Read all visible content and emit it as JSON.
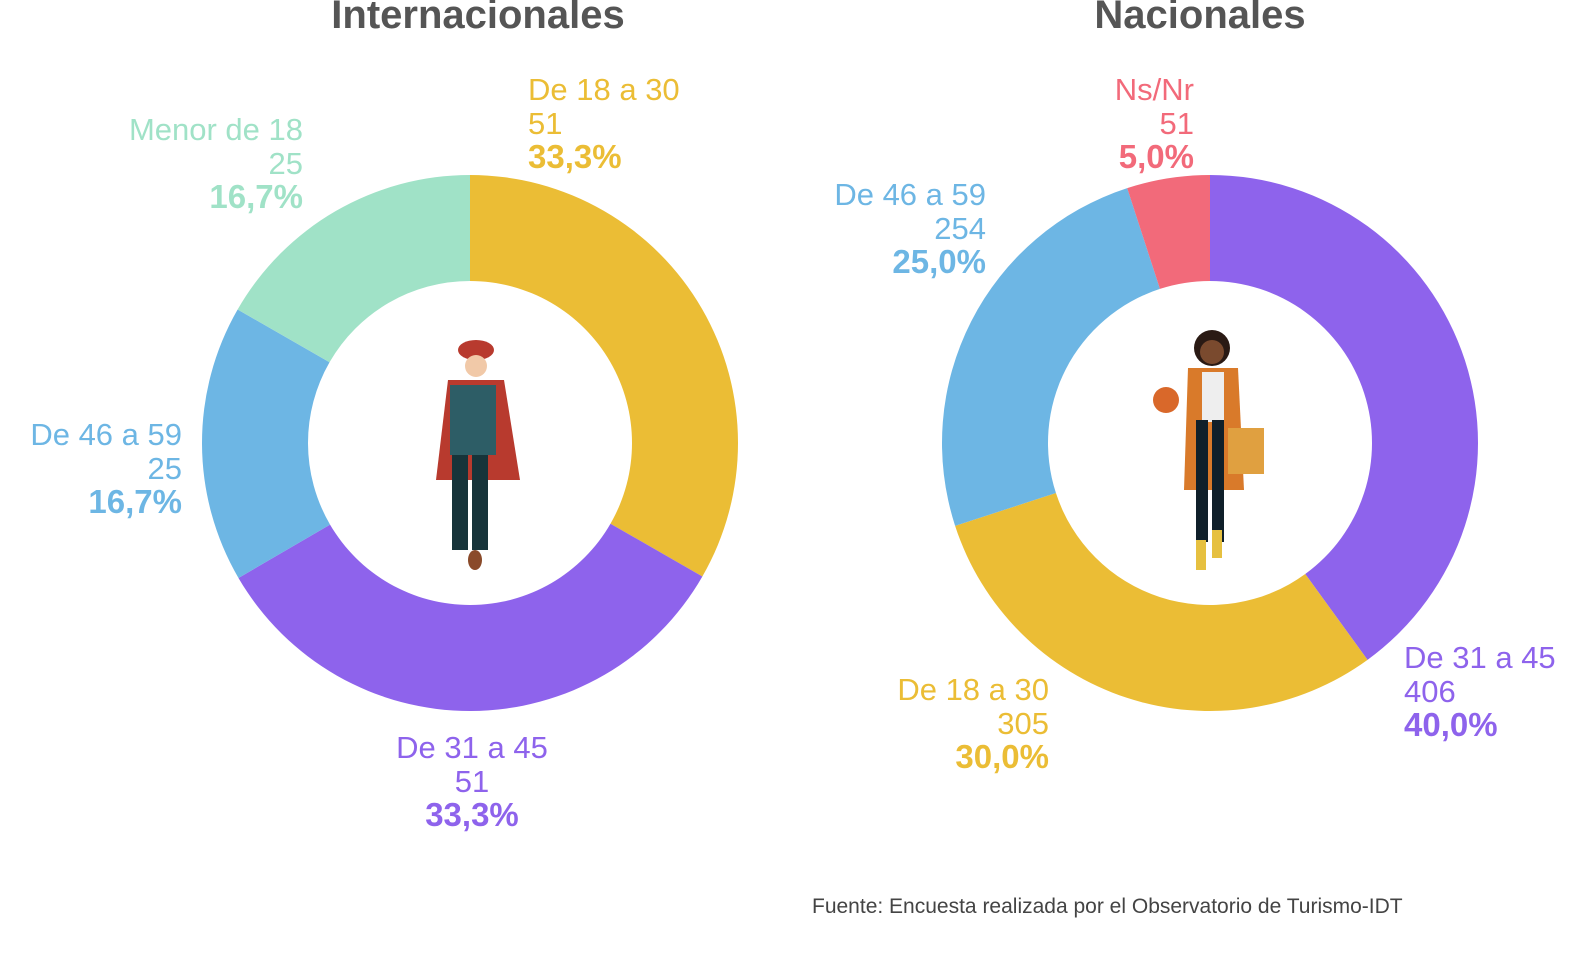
{
  "chart_data": [
    {
      "type": "pie",
      "donut": true,
      "title": "Internacionales",
      "categories": [
        "De 18 a 30",
        "De 31 a 45",
        "De 46 a 59",
        "Menor de 18"
      ],
      "values": [
        33.3,
        33.3,
        16.7,
        16.7
      ],
      "value_labels": [
        "33,3%",
        "33,3%",
        "16,7%",
        "16,7%"
      ],
      "counts": [
        51,
        51,
        25,
        25
      ],
      "colors": [
        "#ebbd35",
        "#8e63ec",
        "#6db6e4",
        "#a0e2c7"
      ]
    },
    {
      "type": "pie",
      "donut": true,
      "title": "Nacionales",
      "categories": [
        "De 31 a 45",
        "De 18 a 30",
        "De 46 a 59",
        "Ns/Nr"
      ],
      "values": [
        40.0,
        30.0,
        25.0,
        5.0
      ],
      "value_labels": [
        "40,0%",
        "30,0%",
        "25,0%",
        "5,0%"
      ],
      "counts": [
        406,
        305,
        254,
        51
      ],
      "colors": [
        "#8e63ec",
        "#ebbd35",
        "#6db6e4",
        "#f26a7a"
      ]
    }
  ],
  "source": "Fuente: Encuesta realizada por el Observatorio de Turismo-IDT"
}
